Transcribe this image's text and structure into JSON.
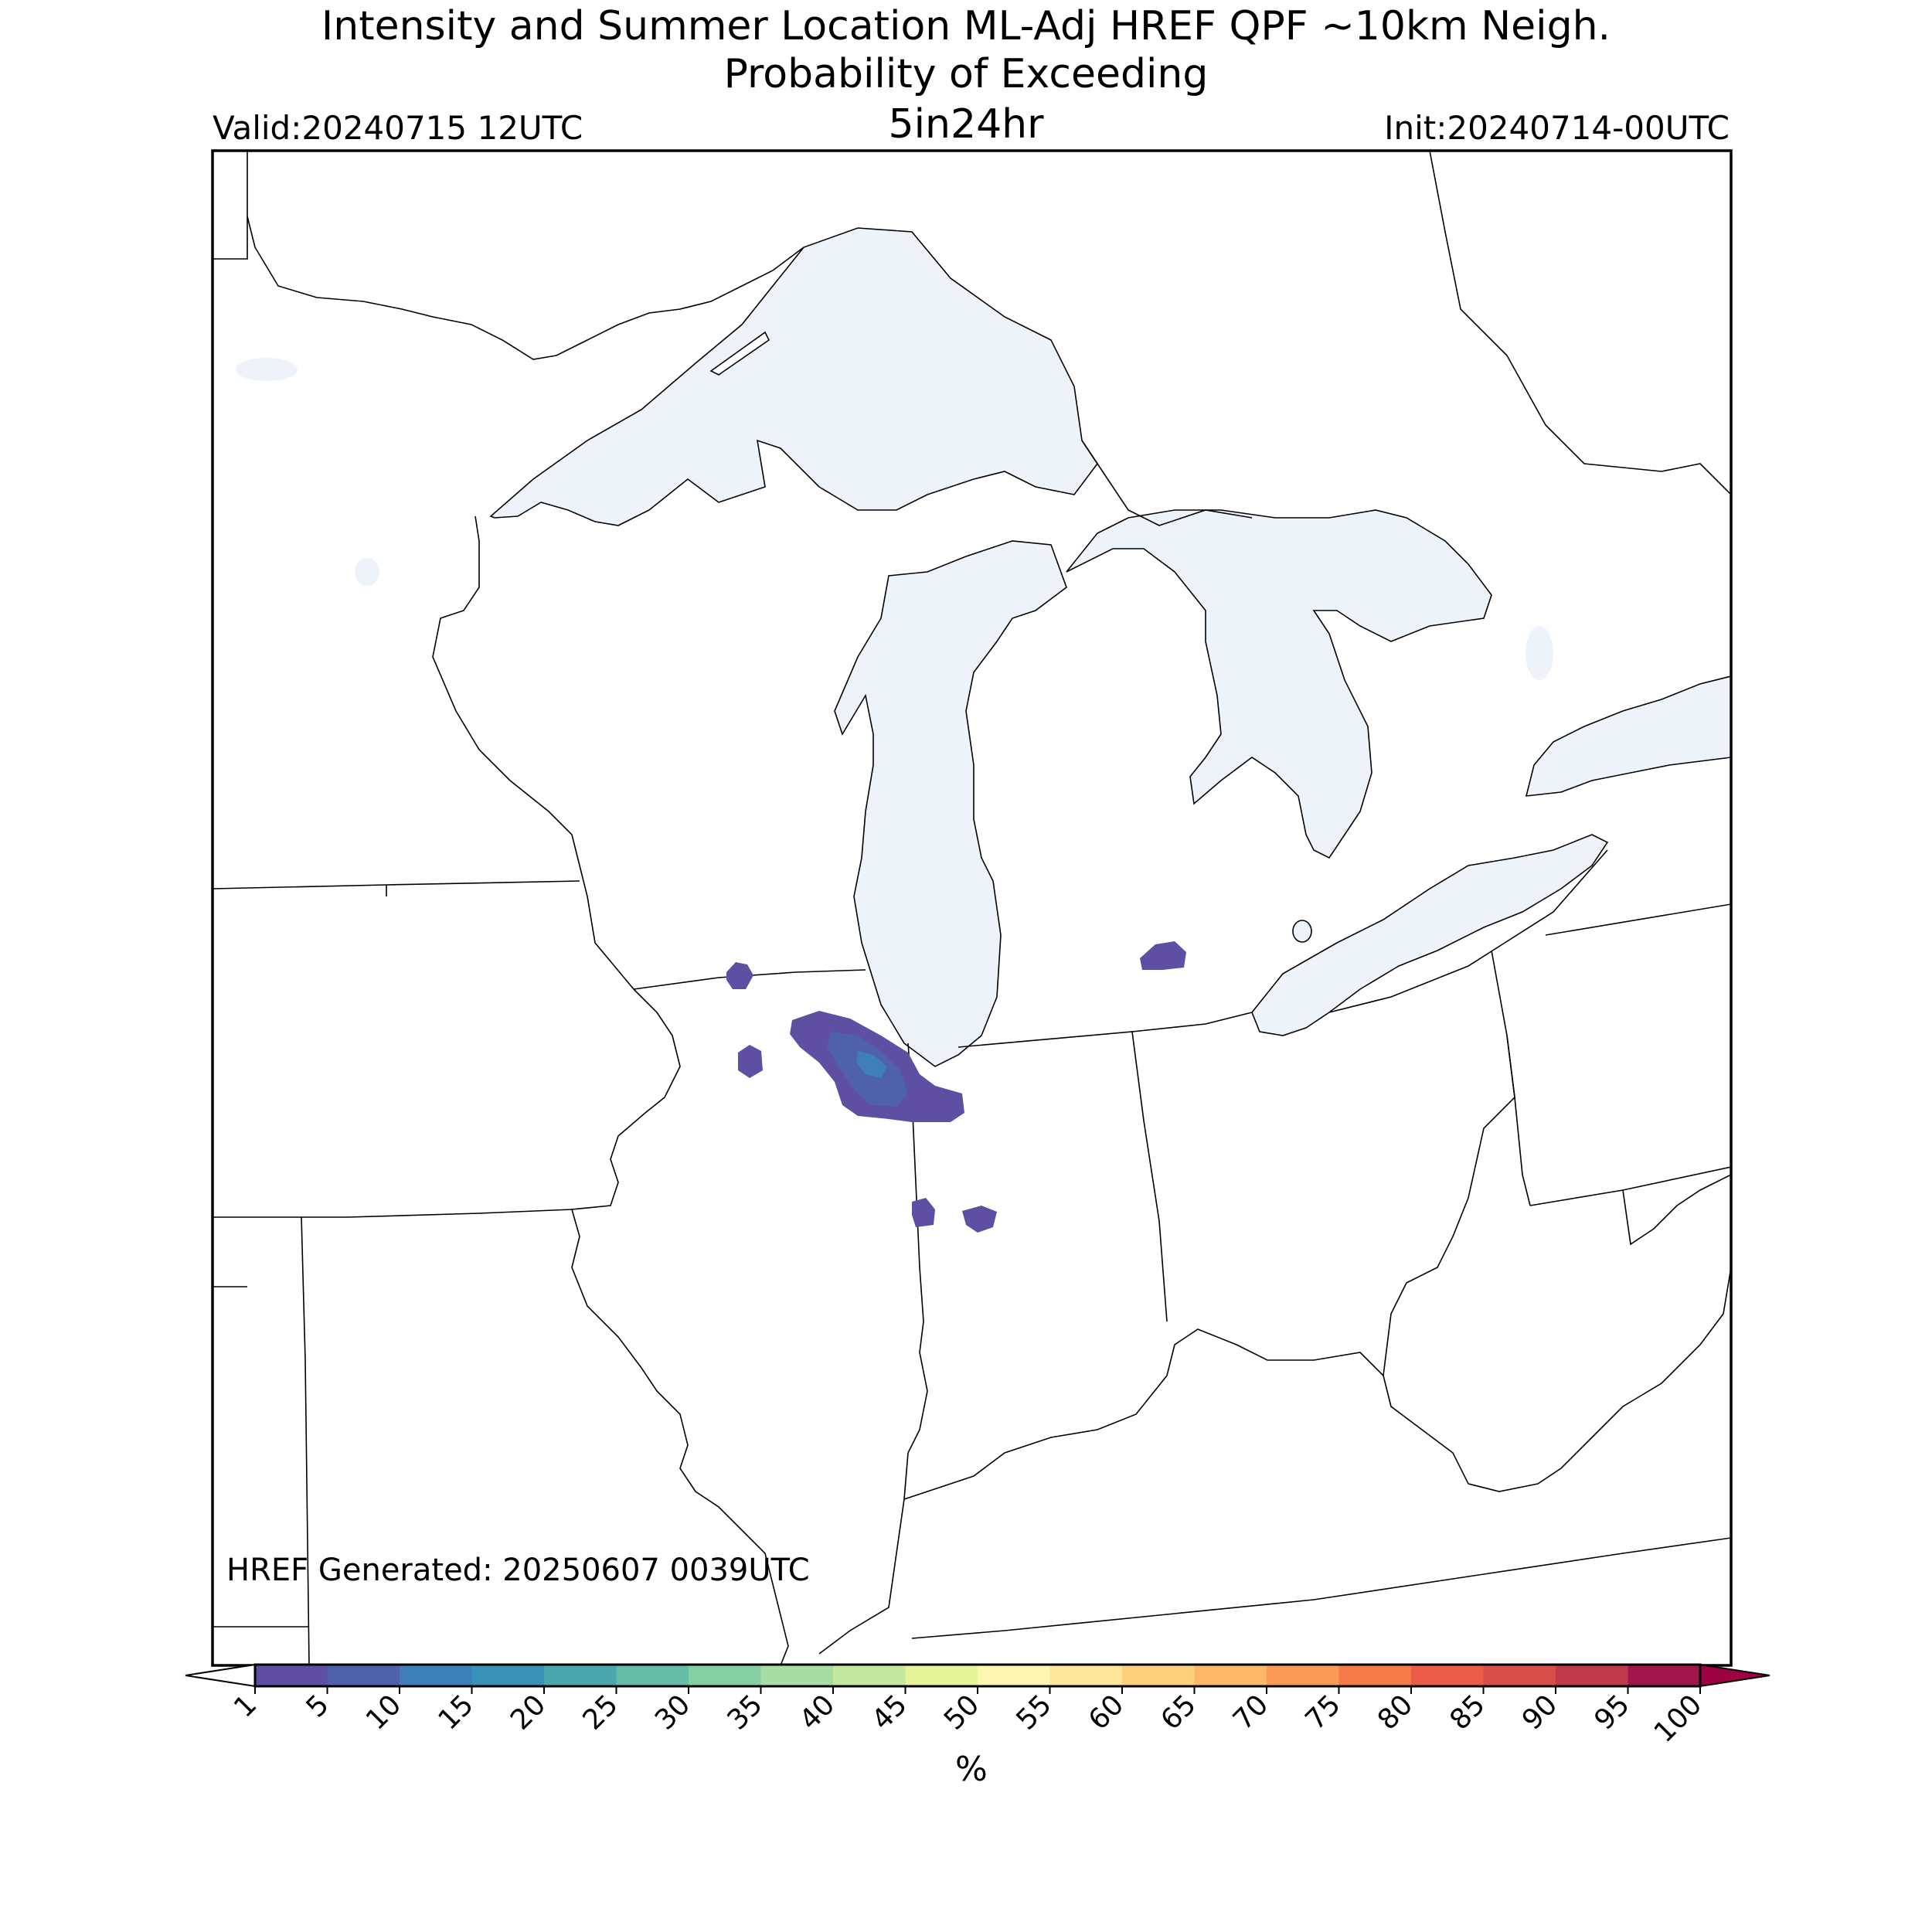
{
  "title": {
    "line1": "Intensity and Summer Location ML-Adj HREF QPF ~10km Neigh.",
    "line2": "Probability of Exceeding",
    "line3": "5in24hr"
  },
  "valid_label": "Valid:20240715 12UTC",
  "init_label": "Init:20240714-00UTC",
  "generated_label": "HREF Generated: 20250607 0039UTC",
  "colorbar": {
    "unit": "%",
    "ticks": [
      "1",
      "5",
      "10",
      "15",
      "20",
      "25",
      "30",
      "35",
      "40",
      "45",
      "50",
      "55",
      "60",
      "65",
      "70",
      "75",
      "80",
      "85",
      "90",
      "95",
      "100"
    ],
    "colors": [
      "#5e4fa2",
      "#4e61aa",
      "#3f7fb8",
      "#3b92b8",
      "#4aa7ae",
      "#66bca6",
      "#86cfa5",
      "#a7dca5",
      "#c6e79f",
      "#e6f599",
      "#fcf6b0",
      "#fee69a",
      "#fed07e",
      "#fdb768",
      "#fb9a57",
      "#f57b4a",
      "#e95c47",
      "#d84e4a",
      "#c13a4c",
      "#a0154a"
    ],
    "under_color": "#ffffff",
    "over_color": "#9e0142"
  },
  "map": {
    "region": "Great Lakes / Upper Midwest",
    "lake_color": "#eef3fa",
    "probability_max_category": "10"
  }
}
